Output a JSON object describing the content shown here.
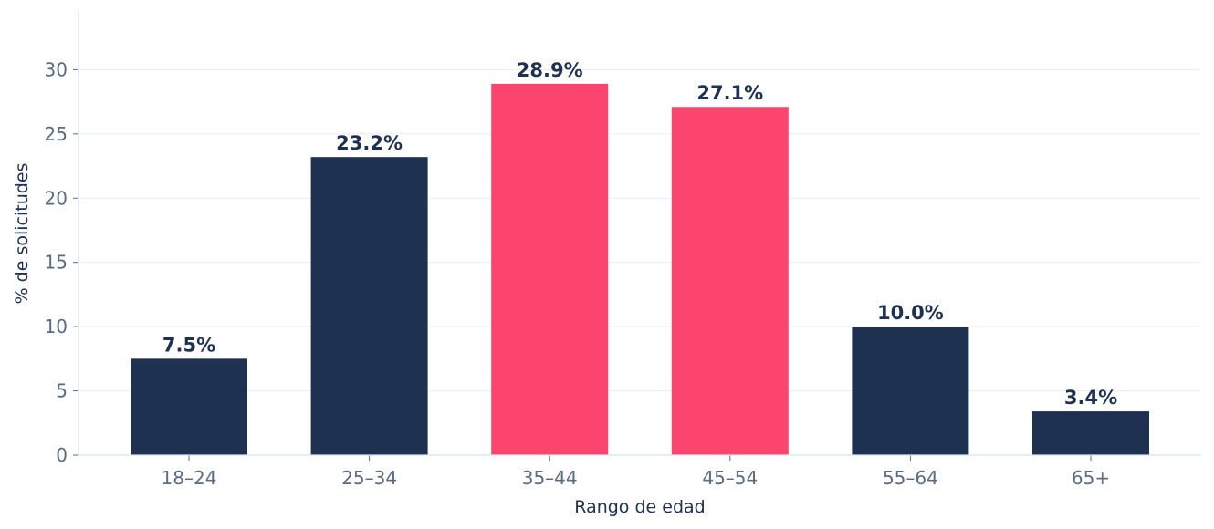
{
  "chart_data": {
    "type": "bar",
    "title": "",
    "xlabel": "Rango de edad",
    "ylabel": "% de solicitudes",
    "categories": [
      "18–24",
      "25–34",
      "35–44",
      "45–54",
      "55–64",
      "65+"
    ],
    "values": [
      7.5,
      23.2,
      28.9,
      27.1,
      10.0,
      3.4
    ],
    "value_labels": [
      "7.5%",
      "23.2%",
      "28.9%",
      "27.1%",
      "10.0%",
      "3.4%"
    ],
    "highlighted": [
      false,
      false,
      true,
      true,
      false,
      false
    ],
    "ylim": [
      0,
      34.5
    ],
    "yticks": [
      0,
      5,
      10,
      15,
      20,
      25,
      30
    ],
    "grid": true,
    "legend": "none",
    "colors": {
      "bar": "#1f3150",
      "highlight": "#fb456e",
      "grid": "#e6edf3",
      "axis": "#d5e3ec",
      "tick_text": "#5b6b82",
      "label_text": "#1f3150"
    }
  }
}
